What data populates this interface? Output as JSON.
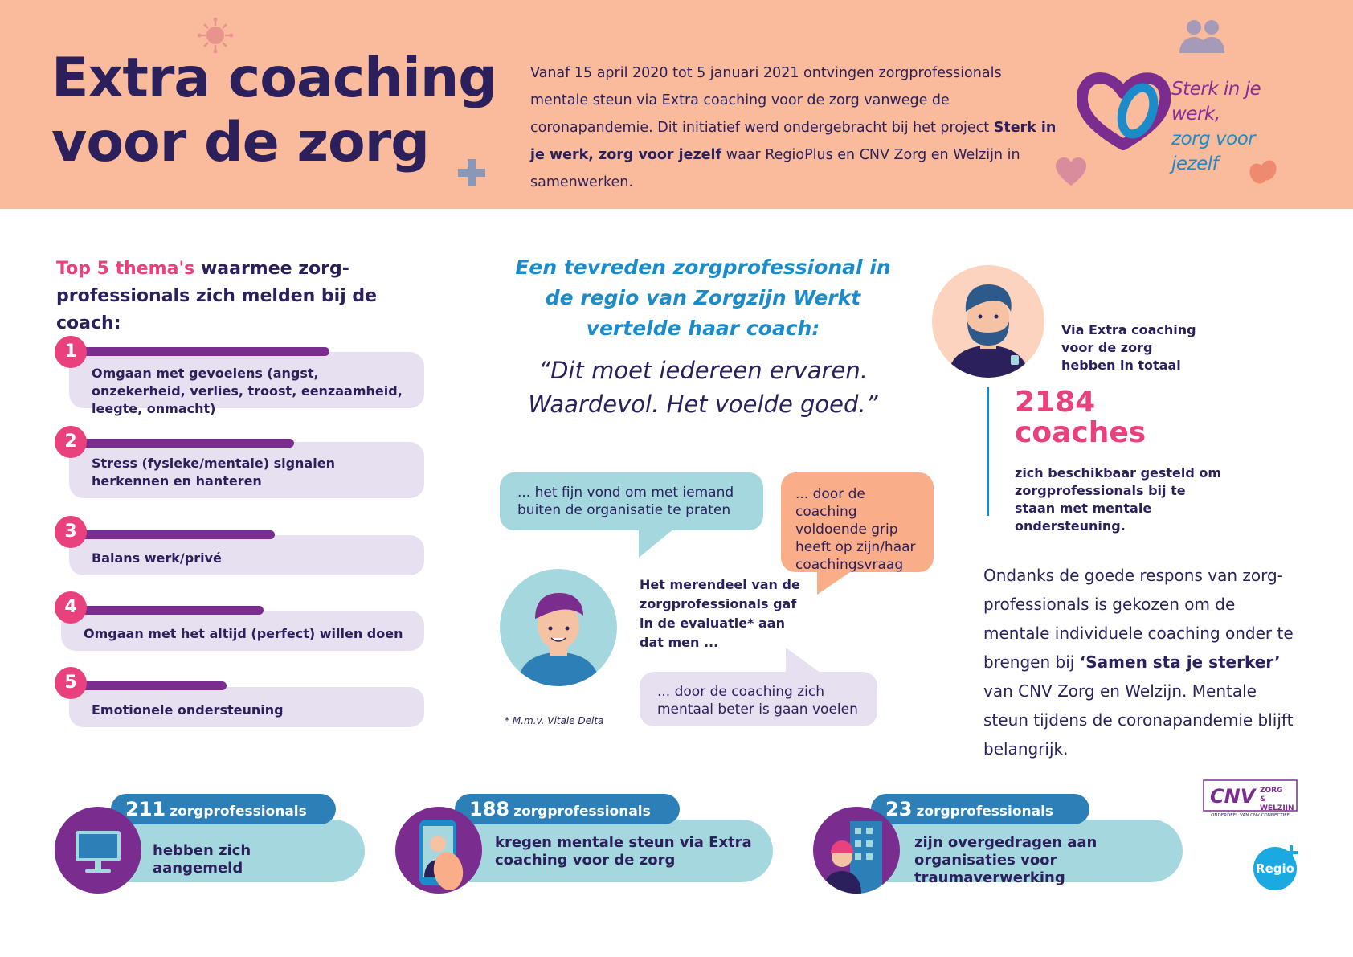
{
  "header": {
    "title_line1": "Extra coaching",
    "title_line2": "voor de zorg",
    "intro_part1": "Vanaf 15 april 2020 tot 5 januari 2021 ontvingen zorgprofessionals mentale steun via Extra coaching voor de zorg vanwege de coronapandemie. Dit initiatief werd ondergebracht bij het project ",
    "intro_bold": "Sterk in je werk, zorg voor jezelf",
    "intro_part2": " waar RegioPlus en CNV Zorg en Welzijn in samenwerken.",
    "logo_line1": "Sterk in je werk,",
    "logo_line2": "zorg voor jezelf",
    "icons": [
      "virus-icon",
      "people-icon",
      "plus-icon",
      "heart-icon",
      "hands-icon"
    ]
  },
  "top5": {
    "title_pink": "Top 5 thema's",
    "title_rest": " waarmee zorg-professionals zich melden bij de coach:",
    "items": [
      {
        "num": "1",
        "text": "Omgaan met gevoelens (angst, onzekerheid, verlies, troost, eenzaamheid, leegte, onmacht)",
        "level": 0.65
      },
      {
        "num": "2",
        "text": "Stress (fysieke/mentale) signalen herkennen en hanteren",
        "level": 0.53
      },
      {
        "num": "3",
        "text": "Balans werk/privé",
        "level": 0.48
      },
      {
        "num": "4",
        "text": "Omgaan met het altijd (perfect) willen doen",
        "level": 0.45
      },
      {
        "num": "5",
        "text": "Emotionele ondersteuning",
        "level": 0.36
      }
    ]
  },
  "quote": {
    "head": "Een tevreden zorgprofessional in de regio van Zorgzijn Werkt vertelde haar coach:",
    "text": "“Dit moet iedereen ervaren. Waardevol. Het voelde goed.”"
  },
  "evaluation": {
    "bubble1": "... het fijn vond om met iemand buiten de organisatie te praten",
    "bubble2": "... door de coaching voldoende grip heeft op zijn/haar coachingsvraag",
    "bubble3": "... door de coaching zich mentaal beter is gaan voelen",
    "merendeel": "Het merendeel van de zorgprofessionals gaf in de evaluatie* aan dat men ...",
    "footnote": "* M.m.v. Vitale Delta"
  },
  "coaches": {
    "via": "Via Extra coaching voor de zorg hebben in totaal",
    "number": "2184",
    "unit": "coaches",
    "text": "zich beschikbaar gesteld om zorgprofessionals bij te staan met mentale ondersteuning."
  },
  "ondanks": {
    "part1": "Ondanks de goede respons van zorg-professionals is gekozen om de mentale individuele coaching onder te brengen bij ",
    "bold": "‘Samen sta je sterker’",
    "part2": " van CNV Zorg en Welzijn. Mentale steun tijdens de coronapandemie blijft belangrijk."
  },
  "stats": [
    {
      "number": "211",
      "label": "zorgprofessionals",
      "text": "hebben zich aangemeld",
      "icon": "monitor-icon"
    },
    {
      "number": "188",
      "label": "zorgprofessionals",
      "text": "kregen mentale steun via Extra coaching voor de zorg",
      "icon": "phone-icon"
    },
    {
      "number": "23",
      "label": "zorgprofessionals",
      "text": "zijn overgedragen aan organisaties voor traumaverwerking",
      "icon": "person-building-icon"
    }
  ],
  "logos": {
    "cnv_main": "CNV",
    "cnv_sub1": "ZORG",
    "cnv_sub2": "& WELZIJN",
    "cnv_tag": "ONDERDEEL VAN CNV CONNECTIEF",
    "regio": "Regio"
  },
  "colors": {
    "header_bg": "#fabb9c",
    "navy": "#2b1f5c",
    "pink": "#e8417e",
    "blue": "#1b8cc9",
    "purple": "#7a2d8f",
    "lilac": "#e7e0f1",
    "teal": "#a5d8de",
    "orange": "#f9ad88"
  }
}
